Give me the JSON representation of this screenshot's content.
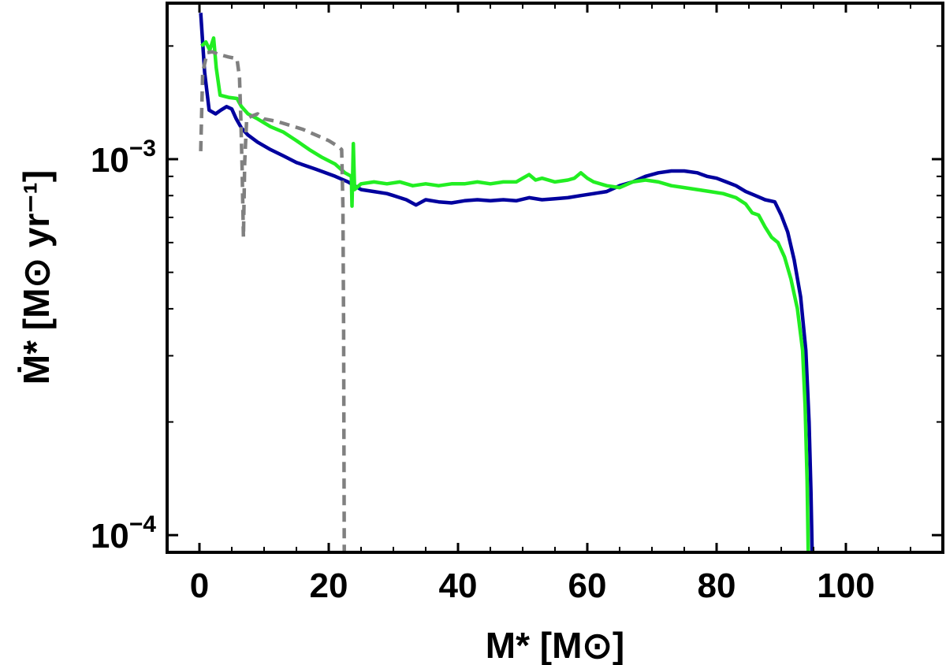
{
  "chart_data": {
    "type": "line",
    "title": "",
    "xlabel": "M* [M⊙]",
    "ylabel": "Ṁ* [M⊙ yr⁻¹]",
    "xlim": [
      -5,
      115
    ],
    "ylim": [
      9e-05,
      0.0026
    ],
    "yscale": "log",
    "grid": false,
    "legend": "none",
    "x_ticks": [
      0,
      20,
      40,
      60,
      80,
      100
    ],
    "x_tick_labels": [
      "0",
      "20",
      "40",
      "60",
      "80",
      "100"
    ],
    "y_ticks": [
      0.001,
      0.0001
    ],
    "y_tick_labels": [
      {
        "base": "10",
        "exp": "−3"
      },
      {
        "base": "10",
        "exp": "−4"
      }
    ],
    "series": [
      {
        "color": "#00009e",
        "style": "solid",
        "points": [
          [
            0.2,
            0.00245
          ],
          [
            0.8,
            0.0017
          ],
          [
            1.5,
            0.00135
          ],
          [
            2.5,
            0.00132
          ],
          [
            3.3,
            0.00135
          ],
          [
            4.2,
            0.00138
          ],
          [
            5.0,
            0.00136
          ],
          [
            5.7,
            0.00128
          ],
          [
            6.5,
            0.00121
          ],
          [
            7.5,
            0.00116
          ],
          [
            9,
            0.00111
          ],
          [
            11,
            0.00106
          ],
          [
            13,
            0.00102
          ],
          [
            15,
            0.00098
          ],
          [
            18,
            0.00094
          ],
          [
            21,
            0.0009
          ],
          [
            23,
            0.00087
          ],
          [
            25,
            0.00083
          ],
          [
            27,
            0.00082
          ],
          [
            29,
            0.00081
          ],
          [
            30,
            0.0008
          ],
          [
            32,
            0.00078
          ],
          [
            33.5,
            0.000755
          ],
          [
            35,
            0.00078
          ],
          [
            37,
            0.00077
          ],
          [
            39,
            0.000765
          ],
          [
            41,
            0.000775
          ],
          [
            43,
            0.00078
          ],
          [
            45,
            0.000775
          ],
          [
            47,
            0.00078
          ],
          [
            49,
            0.000775
          ],
          [
            51,
            0.00079
          ],
          [
            53,
            0.00078
          ],
          [
            55,
            0.000785
          ],
          [
            57,
            0.00079
          ],
          [
            59,
            0.0008
          ],
          [
            61,
            0.00081
          ],
          [
            63,
            0.00082
          ],
          [
            65,
            0.00085
          ],
          [
            67,
            0.00087
          ],
          [
            69,
            0.0009
          ],
          [
            71,
            0.00092
          ],
          [
            73,
            0.00093
          ],
          [
            75,
            0.00093
          ],
          [
            77,
            0.00092
          ],
          [
            78.5,
            0.0009
          ],
          [
            80,
            0.00089
          ],
          [
            81.5,
            0.00087
          ],
          [
            83,
            0.00085
          ],
          [
            84.5,
            0.00082
          ],
          [
            86,
            0.0008
          ],
          [
            87.5,
            0.00078
          ],
          [
            89,
            0.00077
          ],
          [
            90,
            0.00071
          ],
          [
            91,
            0.00064
          ],
          [
            92,
            0.00054
          ],
          [
            93,
            0.00043
          ],
          [
            93.8,
            0.00031
          ],
          [
            94.3,
            0.0002
          ],
          [
            94.6,
            0.00013
          ],
          [
            94.8,
            8.5e-05
          ]
        ]
      },
      {
        "color": "#22ee22",
        "style": "solid",
        "points": [
          [
            0.3,
            0.002
          ],
          [
            1,
            0.00205
          ],
          [
            1.6,
            0.00195
          ],
          [
            2.2,
            0.0021
          ],
          [
            2.6,
            0.00175
          ],
          [
            3.2,
            0.00148
          ],
          [
            4.5,
            0.00146
          ],
          [
            5.8,
            0.00145
          ],
          [
            6.5,
            0.00138
          ],
          [
            7.5,
            0.00132
          ],
          [
            9,
            0.00128
          ],
          [
            11,
            0.00122
          ],
          [
            13,
            0.00118
          ],
          [
            15,
            0.00112
          ],
          [
            17,
            0.00106
          ],
          [
            19,
            0.00101
          ],
          [
            21,
            0.00097
          ],
          [
            22.5,
            0.00092
          ],
          [
            23.5,
            0.0009
          ],
          [
            23.6,
            0.00075
          ],
          [
            23.8,
            0.0011
          ],
          [
            24.0,
            0.00083
          ],
          [
            25,
            0.00086
          ],
          [
            27,
            0.00087
          ],
          [
            29,
            0.00086
          ],
          [
            31,
            0.00087
          ],
          [
            33,
            0.00085
          ],
          [
            35,
            0.00086
          ],
          [
            37,
            0.00085
          ],
          [
            39,
            0.00086
          ],
          [
            41,
            0.00086
          ],
          [
            43,
            0.00087
          ],
          [
            45,
            0.00086
          ],
          [
            47,
            0.00087
          ],
          [
            49,
            0.00087
          ],
          [
            50,
            0.00089
          ],
          [
            51,
            0.00091
          ],
          [
            52,
            0.00088
          ],
          [
            53,
            0.00089
          ],
          [
            55,
            0.00087
          ],
          [
            57,
            0.00088
          ],
          [
            58,
            0.00089
          ],
          [
            59,
            0.00092
          ],
          [
            60,
            0.00089
          ],
          [
            61,
            0.00087
          ],
          [
            63,
            0.00085
          ],
          [
            65,
            0.00084
          ],
          [
            67,
            0.00087
          ],
          [
            69,
            0.00088
          ],
          [
            71,
            0.00087
          ],
          [
            73,
            0.00085
          ],
          [
            75,
            0.00084
          ],
          [
            77,
            0.00083
          ],
          [
            79,
            0.00082
          ],
          [
            81,
            0.00081
          ],
          [
            83,
            0.00079
          ],
          [
            84.5,
            0.00076
          ],
          [
            85.5,
            0.00072
          ],
          [
            86.5,
            0.00071
          ],
          [
            87.5,
            0.00066
          ],
          [
            88.5,
            0.00062
          ],
          [
            89.5,
            0.0006
          ],
          [
            90.5,
            0.00055
          ],
          [
            91.5,
            0.00048
          ],
          [
            92.5,
            0.0004
          ],
          [
            93.3,
            0.00031
          ],
          [
            93.7,
            0.00022
          ],
          [
            94.0,
            0.00014
          ],
          [
            94.2,
            8.5e-05
          ]
        ]
      },
      {
        "color": "#808080",
        "style": "dashed",
        "points": [
          [
            0.2,
            0.00105
          ],
          [
            0.5,
            0.0017
          ],
          [
            1.2,
            0.00192
          ],
          [
            2.0,
            0.00193
          ],
          [
            3.0,
            0.0019
          ],
          [
            4.5,
            0.00187
          ],
          [
            5.8,
            0.00185
          ],
          [
            6.2,
            0.00165
          ],
          [
            6.4,
            0.00128
          ],
          [
            6.6,
            0.00095
          ],
          [
            6.8,
            0.00062
          ],
          [
            7.0,
            0.00098
          ],
          [
            7.3,
            0.00128
          ],
          [
            8,
            0.0013
          ],
          [
            9,
            0.00132
          ],
          [
            10,
            0.00128
          ],
          [
            12,
            0.00126
          ],
          [
            14,
            0.00123
          ],
          [
            16,
            0.0012
          ],
          [
            18,
            0.00116
          ],
          [
            20,
            0.00112
          ],
          [
            21.5,
            0.00108
          ],
          [
            22.0,
            0.00106
          ],
          [
            22.2,
            0.00075
          ],
          [
            22.3,
            0.00035
          ],
          [
            22.4,
            9e-05
          ]
        ]
      }
    ]
  }
}
